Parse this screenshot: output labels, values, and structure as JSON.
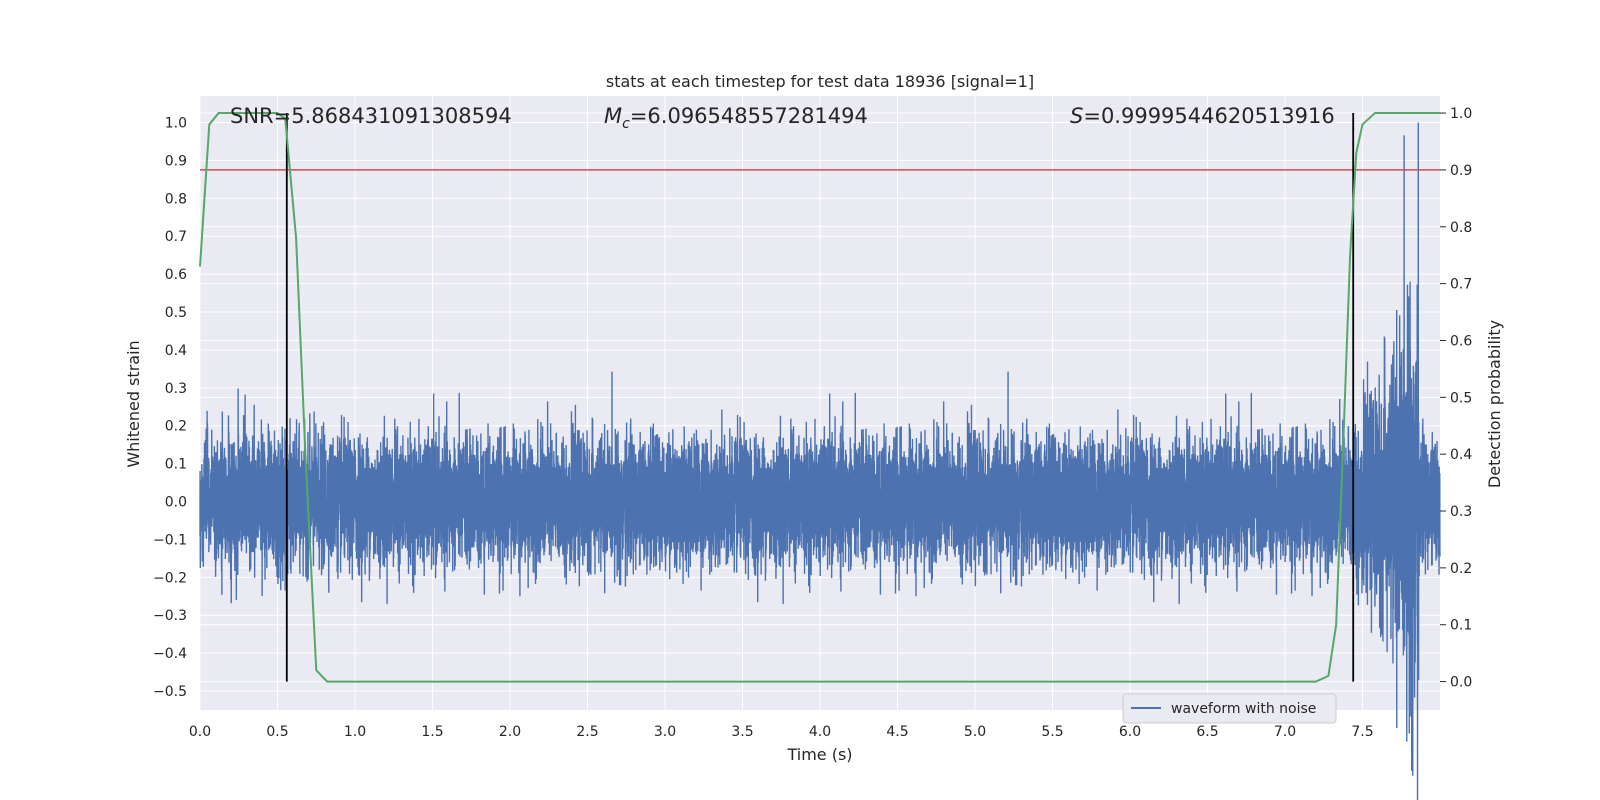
{
  "chart_data": {
    "type": "line",
    "title": "stats at each timestep for test data 18936 [signal=1]",
    "xlabel": "Time (s)",
    "ylabel_left": "Whitened strain",
    "ylabel_right": "Detection probability",
    "xlim": [
      0.0,
      8.0
    ],
    "ylim_left": [
      -0.55,
      1.07
    ],
    "ylim_right": [
      -0.05,
      1.03
    ],
    "x_ticks": [
      "0.0",
      "0.5",
      "1.0",
      "1.5",
      "2.0",
      "2.5",
      "3.0",
      "3.5",
      "4.0",
      "4.5",
      "5.0",
      "5.5",
      "6.0",
      "6.5",
      "7.0",
      "7.5"
    ],
    "y_left_ticks": [
      "1.0",
      "0.9",
      "0.8",
      "0.7",
      "0.6",
      "0.5",
      "0.4",
      "0.3",
      "0.2",
      "0.1",
      "0.0",
      "−0.1",
      "−0.2",
      "−0.3",
      "−0.4",
      "−0.5"
    ],
    "y_right_ticks": [
      "1.0",
      "0.9",
      "0.8",
      "0.7",
      "0.6",
      "0.5",
      "0.4",
      "0.3",
      "0.2",
      "0.1",
      "0.0"
    ],
    "annotations": {
      "snr": "SNR=5.868431091308594",
      "mc_symbol": "M",
      "mc_sub": "c",
      "mc_value": "=6.096548557281494",
      "s_symbol": "S",
      "s_value": "=0.9999544620513916"
    },
    "threshold": {
      "value": 0.9,
      "axis": "right",
      "color": "#c44e52"
    },
    "vlines": [
      0.56,
      7.44
    ],
    "vline_range_right": [
      0.0,
      1.0
    ],
    "detection_probability": {
      "name": "detection probability",
      "color": "#55a868",
      "x": [
        0.0,
        0.06,
        0.12,
        0.25,
        0.4,
        0.5,
        0.55,
        0.58,
        0.62,
        0.68,
        0.75,
        0.82,
        1.0,
        2.0,
        3.0,
        4.0,
        5.0,
        6.0,
        6.5,
        7.0,
        7.2,
        7.28,
        7.33,
        7.38,
        7.42,
        7.46,
        7.5,
        7.58,
        7.7,
        7.85,
        8.0
      ],
      "y": [
        0.73,
        0.98,
        1.0,
        1.0,
        1.0,
        1.0,
        0.99,
        0.9,
        0.78,
        0.4,
        0.02,
        0.0,
        0.0,
        0.0,
        0.0,
        0.0,
        0.0,
        0.0,
        0.0,
        0.0,
        0.0,
        0.01,
        0.1,
        0.45,
        0.75,
        0.93,
        0.98,
        1.0,
        1.0,
        1.0,
        1.0
      ]
    },
    "waveform": {
      "name": "waveform with noise",
      "color": "#4c72b0",
      "sample_rate_hz": 2048,
      "duration_s": 8.0,
      "noise_rms": 0.08,
      "peak_value": 1.0,
      "peak_time": 7.86
    },
    "legend": {
      "labels": [
        "waveform with noise"
      ],
      "location": "lower-right"
    },
    "grid": true,
    "colors": {
      "background": "#eaeaf2",
      "grid": "#ffffff",
      "text": "#262626",
      "vline": "#000000"
    }
  }
}
